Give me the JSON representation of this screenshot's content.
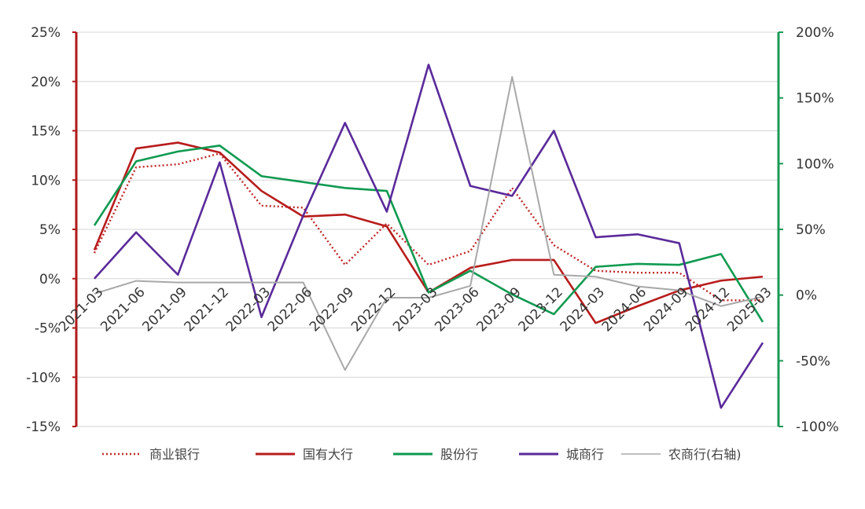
{
  "chart_data": {
    "type": "line",
    "title": "",
    "categories": [
      "2021-03",
      "2021-06",
      "2021-09",
      "2021-12",
      "2022-03",
      "2022-06",
      "2022-09",
      "2022-12",
      "2023-03",
      "2023-06",
      "2023-09",
      "2023-12",
      "2024-03",
      "2024-06",
      "2024-09",
      "2024-12",
      "2025-03"
    ],
    "left_axis": {
      "ylim": [
        -15,
        25
      ],
      "ticks": [
        "25%",
        "20%",
        "15%",
        "10%",
        "5%",
        "0%",
        "-5%",
        "-10%",
        "-15%"
      ],
      "tick_values": [
        25,
        20,
        15,
        10,
        5,
        0,
        -5,
        -10,
        -15
      ],
      "color": "#b01a1a"
    },
    "right_axis": {
      "ylim": [
        -100,
        200
      ],
      "ticks": [
        "200%",
        "150%",
        "100%",
        "50%",
        "0%",
        "-50%",
        "-100%"
      ],
      "tick_values": [
        200,
        150,
        100,
        50,
        0,
        -50,
        -100
      ],
      "color": "#1a9a55"
    },
    "grid": true,
    "legend_position": "bottom",
    "series": [
      {
        "name": "商业银行",
        "axis": "left",
        "color": "#c0282a",
        "dash": "dotted",
        "values": [
          2.6,
          11.3,
          11.6,
          12.7,
          7.4,
          7.2,
          1.4,
          5.6,
          1.4,
          2.8,
          9.2,
          3.4,
          0.8,
          0.6,
          0.6,
          -2.2,
          -2.2
        ]
      },
      {
        "name": "国有大行",
        "axis": "left",
        "color": "#b81c1c",
        "dash": "solid",
        "values": [
          2.9,
          13.2,
          13.8,
          12.8,
          8.9,
          6.3,
          6.5,
          5.3,
          -1.4,
          1.1,
          1.9,
          1.9,
          -4.5,
          -2.8,
          -1.2,
          -0.2,
          0.2
        ]
      },
      {
        "name": "股份行",
        "axis": "left",
        "color": "#0e9a50",
        "dash": "solid",
        "values": [
          5.4,
          11.9,
          12.9,
          13.5,
          10.4,
          9.8,
          9.2,
          8.9,
          -1.4,
          0.8,
          -1.6,
          -3.6,
          1.2,
          1.5,
          1.4,
          2.5,
          -4.4
        ]
      },
      {
        "name": "城商行",
        "axis": "left",
        "color": "#5a2a9a",
        "dash": "solid",
        "values": [
          0,
          4.7,
          0.4,
          11.8,
          -3.9,
          6.4,
          15.8,
          6.8,
          21.7,
          9.4,
          8.4,
          15.0,
          4.2,
          4.5,
          3.6,
          -13.1,
          -6.5
        ]
      },
      {
        "name": "农商行(右轴)",
        "axis": "right",
        "color": "#a8a8a8",
        "dash": "solid",
        "values": [
          1,
          10.8,
          9.6,
          9.6,
          9.6,
          9.6,
          -57,
          -2,
          -2,
          7,
          166,
          15.5,
          14,
          6.6,
          3.6,
          -8.4,
          -1.2
        ]
      }
    ]
  }
}
